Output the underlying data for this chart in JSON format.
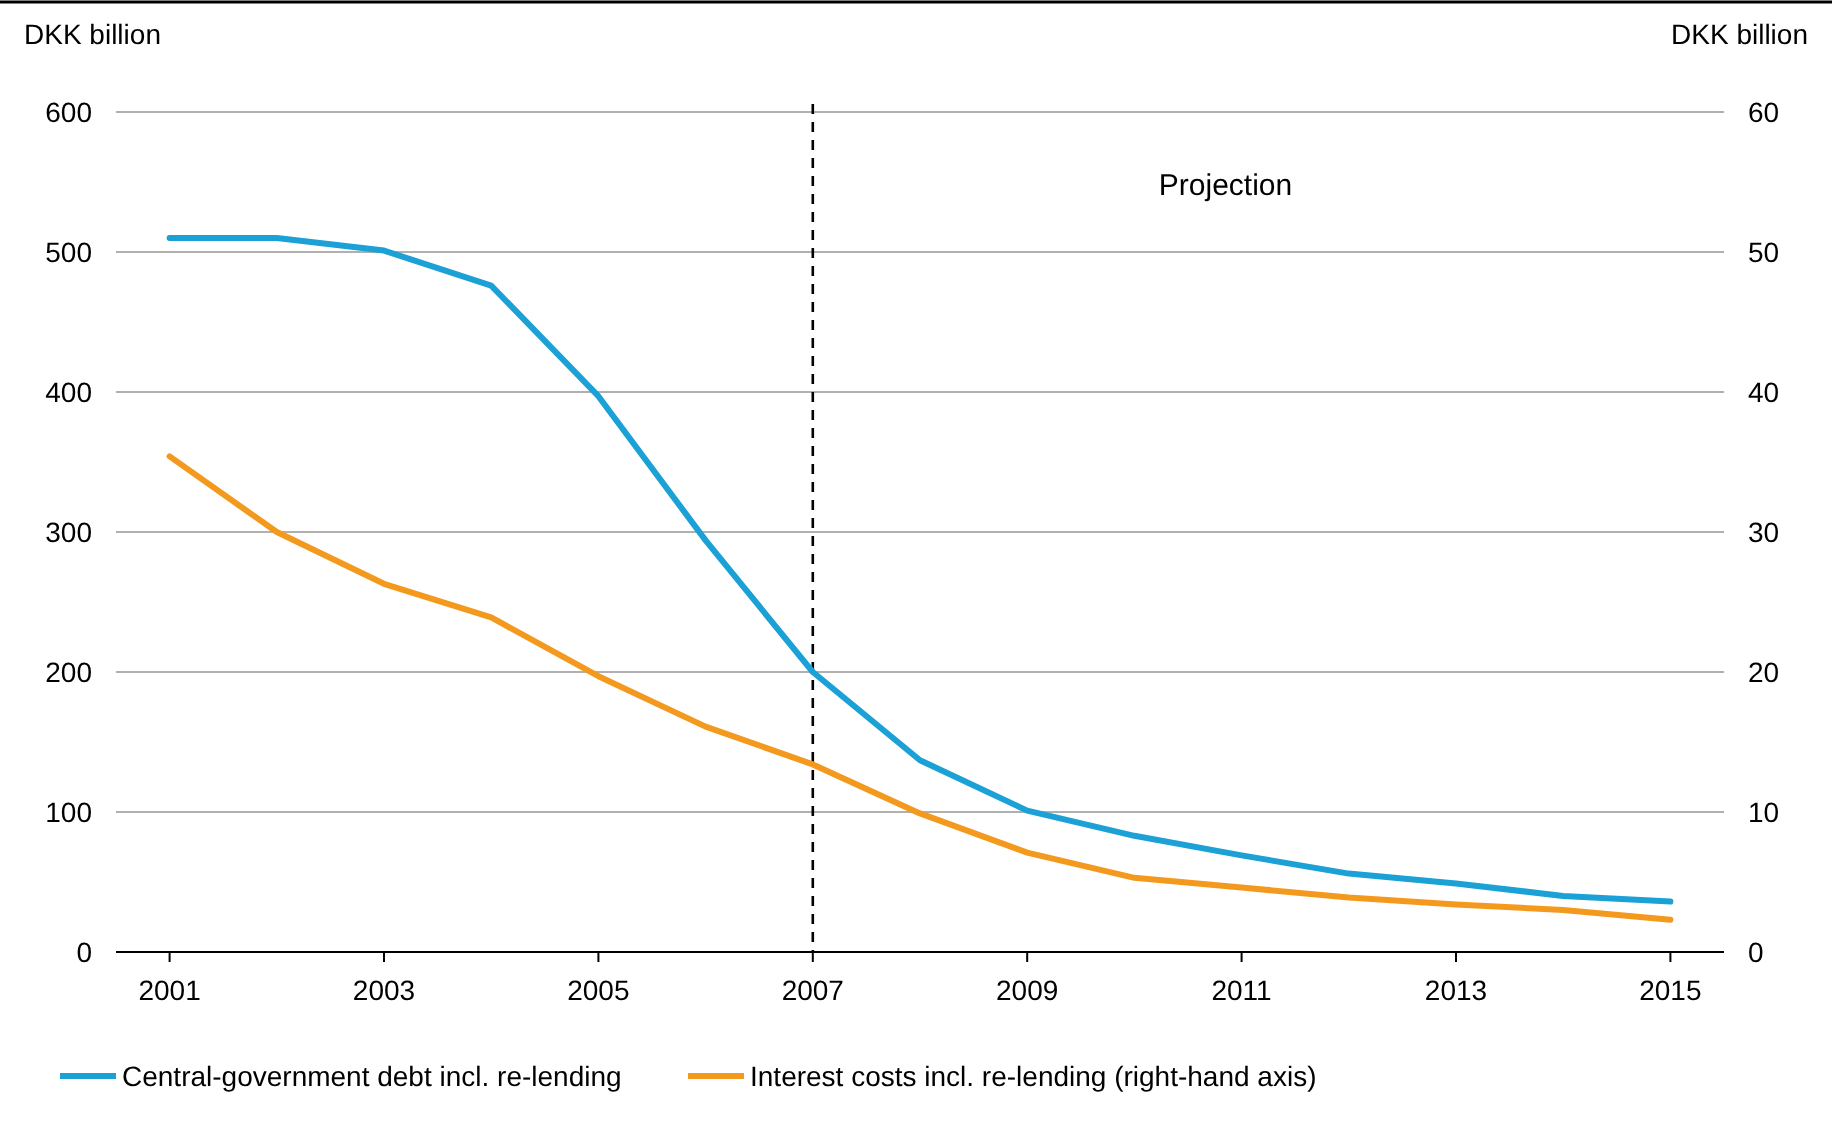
{
  "chart_data": {
    "type": "line",
    "ylabel": "DKK billion",
    "y2label": "DKK billion",
    "x": [
      2001,
      2002,
      2003,
      2004,
      2005,
      2006,
      2007,
      2008,
      2009,
      2010,
      2011,
      2012,
      2013,
      2014,
      2015
    ],
    "xlim": [
      2000.5,
      2015.5
    ],
    "xticks": [
      2001,
      2003,
      2005,
      2007,
      2009,
      2011,
      2013,
      2015
    ],
    "ylim": [
      0,
      600
    ],
    "yticks": [
      0,
      100,
      200,
      300,
      400,
      500,
      600
    ],
    "y2lim": [
      0,
      60
    ],
    "y2ticks": [
      0,
      10,
      20,
      30,
      40,
      50,
      60
    ],
    "series": [
      {
        "name": "Central-government debt incl. re-lending",
        "color": "#1ba1d6",
        "values": [
          510,
          510,
          501,
          476,
          397,
          294,
          200,
          137,
          101,
          83,
          69,
          56,
          49,
          40,
          36
        ]
      },
      {
        "name": "Interest costs incl. re-lending (right-hand axis)",
        "color": "#f39a1e",
        "axis": "y2",
        "values": [
          35.4,
          30,
          26.3,
          23.9,
          19.7,
          16.1,
          13.4,
          9.9,
          7.1,
          5.3,
          4.6,
          3.9,
          3.4,
          3.0,
          2.3
        ]
      }
    ],
    "ref_lines": [
      {
        "axis": "x",
        "value": 2007,
        "label": null,
        "color": "#000000",
        "line_style": "dashed"
      }
    ],
    "annotations": [
      "Projection"
    ],
    "grid": "y",
    "legend": "bottom",
    "marker": "none",
    "line_style": "solid"
  }
}
